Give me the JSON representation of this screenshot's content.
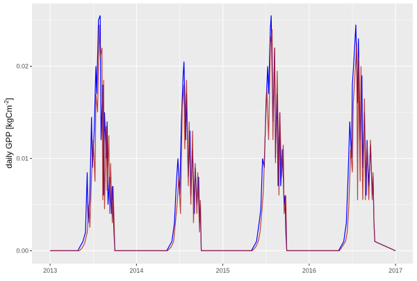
{
  "chart_data": {
    "type": "line",
    "title": "",
    "xlabel": "",
    "ylabel": "daily GPP [kgCm",
    "ylabel_sup": "-2",
    "ylabel_end": "]",
    "xlim": [
      2012.79,
      2017.2
    ],
    "ylim": [
      -0.0014,
      0.0268
    ],
    "x_ticks": [
      2013,
      2014,
      2015,
      2016,
      2017
    ],
    "x_tick_labels": [
      "2013",
      "2014",
      "2015",
      "2016",
      "2017"
    ],
    "y_ticks": [
      0,
      0.01,
      0.02
    ],
    "y_tick_labels": [
      "0.00",
      "0.01",
      "0.02"
    ],
    "grid": true,
    "legend": "none",
    "background": "#EBEBEB",
    "series": [
      {
        "color": "#0000FF",
        "points": [
          [
            2013.0,
            0
          ],
          [
            2013.32,
            0
          ],
          [
            2013.35,
            0.0005
          ],
          [
            2013.38,
            0.001
          ],
          [
            2013.41,
            0.002
          ],
          [
            2013.43,
            0.0085
          ],
          [
            2013.44,
            0.003
          ],
          [
            2013.46,
            0.006
          ],
          [
            2013.48,
            0.0145
          ],
          [
            2013.49,
            0.009
          ],
          [
            2013.51,
            0.013
          ],
          [
            2013.53,
            0.02
          ],
          [
            2013.54,
            0.017
          ],
          [
            2013.56,
            0.025
          ],
          [
            2013.58,
            0.0255
          ],
          [
            2013.59,
            0.012
          ],
          [
            2013.61,
            0.018
          ],
          [
            2013.62,
            0.006
          ],
          [
            2013.63,
            0.015
          ],
          [
            2013.65,
            0.01
          ],
          [
            2013.66,
            0.014
          ],
          [
            2013.67,
            0.005
          ],
          [
            2013.69,
            0.008
          ],
          [
            2013.71,
            0.004
          ],
          [
            2013.72,
            0.007
          ],
          [
            2013.74,
            0.002
          ],
          [
            2013.75,
            0
          ],
          [
            2014.35,
            0
          ],
          [
            2014.38,
            0.0005
          ],
          [
            2014.41,
            0.001
          ],
          [
            2014.44,
            0.003
          ],
          [
            2014.46,
            0.007
          ],
          [
            2014.48,
            0.01
          ],
          [
            2014.5,
            0.006
          ],
          [
            2014.52,
            0.014
          ],
          [
            2014.54,
            0.019
          ],
          [
            2014.55,
            0.0205
          ],
          [
            2014.57,
            0.012
          ],
          [
            2014.58,
            0.017
          ],
          [
            2014.6,
            0.008
          ],
          [
            2014.62,
            0.013
          ],
          [
            2014.63,
            0.006
          ],
          [
            2014.65,
            0.011
          ],
          [
            2014.67,
            0.004
          ],
          [
            2014.68,
            0.009
          ],
          [
            2014.7,
            0.005
          ],
          [
            2014.72,
            0.008
          ],
          [
            2014.73,
            0.003
          ],
          [
            2014.74,
            0.005
          ],
          [
            2014.75,
            0
          ],
          [
            2015.33,
            0
          ],
          [
            2015.36,
            0.0005
          ],
          [
            2015.39,
            0.001
          ],
          [
            2015.42,
            0.003
          ],
          [
            2015.44,
            0.0045
          ],
          [
            2015.46,
            0.01
          ],
          [
            2015.48,
            0.009
          ],
          [
            2015.5,
            0.016
          ],
          [
            2015.52,
            0.02
          ],
          [
            2015.53,
            0.017
          ],
          [
            2015.55,
            0.024
          ],
          [
            2015.56,
            0.0255
          ],
          [
            2015.58,
            0.014
          ],
          [
            2015.6,
            0.022
          ],
          [
            2015.61,
            0.01
          ],
          [
            2015.63,
            0.017
          ],
          [
            2015.64,
            0.007
          ],
          [
            2015.66,
            0.015
          ],
          [
            2015.67,
            0.007
          ],
          [
            2015.69,
            0.011
          ],
          [
            2015.71,
            0.005
          ],
          [
            2015.72,
            0.006
          ],
          [
            2015.73,
            0.002
          ],
          [
            2015.74,
            0
          ],
          [
            2016.34,
            0
          ],
          [
            2016.37,
            0.0005
          ],
          [
            2016.4,
            0.001
          ],
          [
            2016.43,
            0.003
          ],
          [
            2016.45,
            0.008
          ],
          [
            2016.47,
            0.014
          ],
          [
            2016.49,
            0.01
          ],
          [
            2016.5,
            0.018
          ],
          [
            2016.52,
            0.021
          ],
          [
            2016.54,
            0.0245
          ],
          [
            2016.56,
            0.016
          ],
          [
            2016.57,
            0.023
          ],
          [
            2016.59,
            0.012
          ],
          [
            2016.61,
            0.019
          ],
          [
            2016.62,
            0.009
          ],
          [
            2016.64,
            0.015
          ],
          [
            2016.66,
            0.006
          ],
          [
            2016.67,
            0.012
          ],
          [
            2016.69,
            0.007
          ],
          [
            2016.71,
            0.0115
          ],
          [
            2016.73,
            0.006
          ],
          [
            2016.74,
            0.008
          ],
          [
            2016.75,
            0.003
          ],
          [
            2016.76,
            0.001
          ],
          [
            2017.0,
            0
          ]
        ]
      },
      {
        "color": "#B22222",
        "points": [
          [
            2013.0,
            0
          ],
          [
            2013.34,
            0
          ],
          [
            2013.37,
            0.0003
          ],
          [
            2013.4,
            0.0008
          ],
          [
            2013.43,
            0.002
          ],
          [
            2013.45,
            0.005
          ],
          [
            2013.46,
            0.0025
          ],
          [
            2013.48,
            0.008
          ],
          [
            2013.5,
            0.012
          ],
          [
            2013.52,
            0.0075
          ],
          [
            2013.53,
            0.017
          ],
          [
            2013.55,
            0.015
          ],
          [
            2013.57,
            0.0245
          ],
          [
            2013.58,
            0.021
          ],
          [
            2013.6,
            0.022
          ],
          [
            2013.61,
            0.0055
          ],
          [
            2013.62,
            0.0185
          ],
          [
            2013.63,
            0.0045
          ],
          [
            2013.65,
            0.0135
          ],
          [
            2013.66,
            0.0065
          ],
          [
            2013.68,
            0.0125
          ],
          [
            2013.69,
            0.004
          ],
          [
            2013.7,
            0.0095
          ],
          [
            2013.72,
            0.003
          ],
          [
            2013.73,
            0.007
          ],
          [
            2013.75,
            0
          ],
          [
            2014.36,
            0
          ],
          [
            2014.4,
            0.0004
          ],
          [
            2014.43,
            0.001
          ],
          [
            2014.45,
            0.003
          ],
          [
            2014.47,
            0.005
          ],
          [
            2014.49,
            0.008
          ],
          [
            2014.51,
            0.004
          ],
          [
            2014.53,
            0.0155
          ],
          [
            2014.55,
            0.018
          ],
          [
            2014.56,
            0.011
          ],
          [
            2014.58,
            0.0185
          ],
          [
            2014.6,
            0.007
          ],
          [
            2014.61,
            0.014
          ],
          [
            2014.63,
            0.005
          ],
          [
            2014.65,
            0.013
          ],
          [
            2014.66,
            0.003
          ],
          [
            2014.68,
            0.0095
          ],
          [
            2014.7,
            0.004
          ],
          [
            2014.71,
            0.0085
          ],
          [
            2014.73,
            0.002
          ],
          [
            2014.74,
            0.0055
          ],
          [
            2014.75,
            0
          ],
          [
            2015.34,
            0
          ],
          [
            2015.38,
            0.0004
          ],
          [
            2015.41,
            0.001
          ],
          [
            2015.43,
            0.002
          ],
          [
            2015.45,
            0.004
          ],
          [
            2015.47,
            0.0065
          ],
          [
            2015.49,
            0.0125
          ],
          [
            2015.51,
            0.0175
          ],
          [
            2015.53,
            0.012
          ],
          [
            2015.55,
            0.0225
          ],
          [
            2015.57,
            0.024
          ],
          [
            2015.58,
            0.012
          ],
          [
            2015.6,
            0.022
          ],
          [
            2015.61,
            0.0095
          ],
          [
            2015.63,
            0.0195
          ],
          [
            2015.65,
            0.006
          ],
          [
            2015.66,
            0.015
          ],
          [
            2015.68,
            0.008
          ],
          [
            2015.7,
            0.0115
          ],
          [
            2015.71,
            0.004
          ],
          [
            2015.73,
            0.006
          ],
          [
            2015.74,
            0
          ],
          [
            2016.35,
            0
          ],
          [
            2016.38,
            0.0004
          ],
          [
            2016.42,
            0.001
          ],
          [
            2016.44,
            0.002
          ],
          [
            2016.46,
            0.005
          ],
          [
            2016.48,
            0.011
          ],
          [
            2016.5,
            0.0085
          ],
          [
            2016.51,
            0.016
          ],
          [
            2016.53,
            0.019
          ],
          [
            2016.55,
            0.0225
          ],
          [
            2016.56,
            0.0055
          ],
          [
            2016.57,
            0.021
          ],
          [
            2016.59,
            0.0075
          ],
          [
            2016.6,
            0.02
          ],
          [
            2016.62,
            0.0055
          ],
          [
            2016.64,
            0.0165
          ],
          [
            2016.65,
            0.0055
          ],
          [
            2016.67,
            0.0115
          ],
          [
            2016.69,
            0.0055
          ],
          [
            2016.71,
            0.012
          ],
          [
            2016.73,
            0.0055
          ],
          [
            2016.74,
            0.0085
          ],
          [
            2016.75,
            0.003
          ],
          [
            2016.76,
            0.001
          ],
          [
            2017.0,
            0
          ]
        ]
      }
    ]
  }
}
